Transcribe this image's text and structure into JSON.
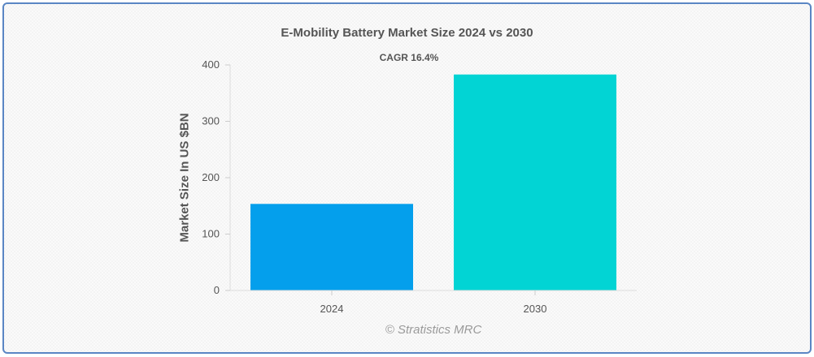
{
  "chart_data": {
    "type": "bar",
    "title": "E-Mobility Battery Market Size 2024 vs 2030",
    "annotation": "CAGR 16.4%",
    "ylabel": "Market Size In US $BN",
    "xlabel": "",
    "categories": [
      "2024",
      "2030"
    ],
    "values": [
      153.5,
      383
    ],
    "ylim": [
      0,
      400
    ],
    "yticks": [
      0,
      100,
      200,
      300,
      400
    ],
    "colors": [
      "#049fec",
      "#02d4d4"
    ],
    "grid": false,
    "legend": "none"
  },
  "credit": "© Stratistics MRC"
}
